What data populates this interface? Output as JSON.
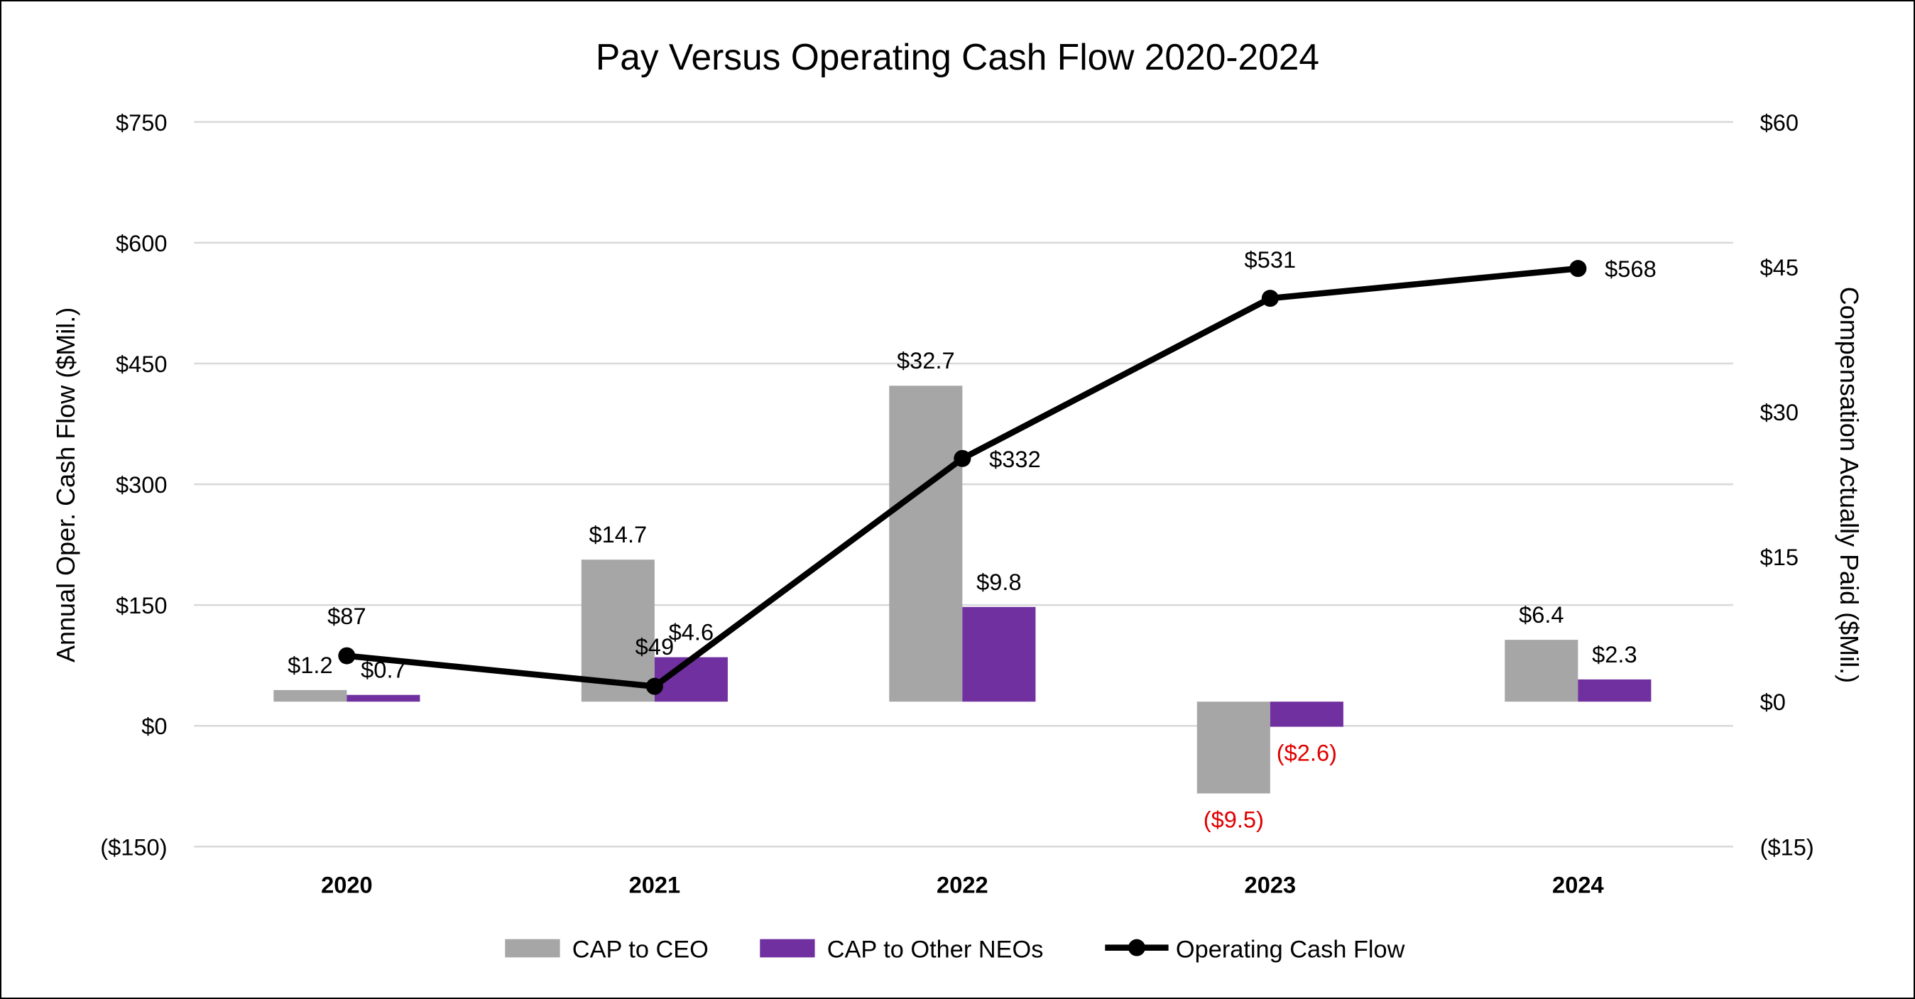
{
  "chart_data": {
    "type": "bar+line",
    "title": "Pay Versus Operating Cash Flow 2020-2024",
    "categories": [
      "2020",
      "2021",
      "2022",
      "2023",
      "2024"
    ],
    "y_left": {
      "label": "Annual Oper. Cash Flow ($Mil.)",
      "range": [
        -150,
        750
      ],
      "ticks": [
        "($150)",
        "$0",
        "$150",
        "$300",
        "$450",
        "$600",
        "$750"
      ],
      "tick_values": [
        -150,
        0,
        150,
        300,
        450,
        600,
        750
      ]
    },
    "y_right": {
      "label": "Compensation Actually Paid ($Mil.)",
      "range": [
        -15,
        60
      ],
      "ticks": [
        "($15)",
        "$0",
        "$15",
        "$30",
        "$45",
        "$60"
      ],
      "tick_values": [
        -15,
        0,
        15,
        30,
        45,
        60
      ]
    },
    "grid": true,
    "legend_position": "bottom",
    "series": [
      {
        "name": "CAP to CEO",
        "type": "bar",
        "axis": "right",
        "color": "#a6a6a6",
        "values": [
          1.2,
          14.7,
          32.7,
          -9.5,
          6.4
        ],
        "labels": [
          "$1.2",
          "$14.7",
          "$32.7",
          "($9.5)",
          "$6.4"
        ]
      },
      {
        "name": "CAP to Other NEOs",
        "type": "bar",
        "axis": "right",
        "color": "#7030a0",
        "values": [
          0.7,
          4.6,
          9.8,
          -2.6,
          2.3
        ],
        "labels": [
          "$0.7",
          "$4.6",
          "$9.8",
          "($2.6)",
          "$2.3"
        ]
      },
      {
        "name": "Operating Cash Flow",
        "type": "line",
        "axis": "left",
        "color": "#000000",
        "values": [
          87,
          49,
          332,
          531,
          568
        ],
        "labels": [
          "$87",
          "$49",
          "$332",
          "$531",
          "$568"
        ]
      }
    ],
    "negative_label_color": "#e00000"
  }
}
